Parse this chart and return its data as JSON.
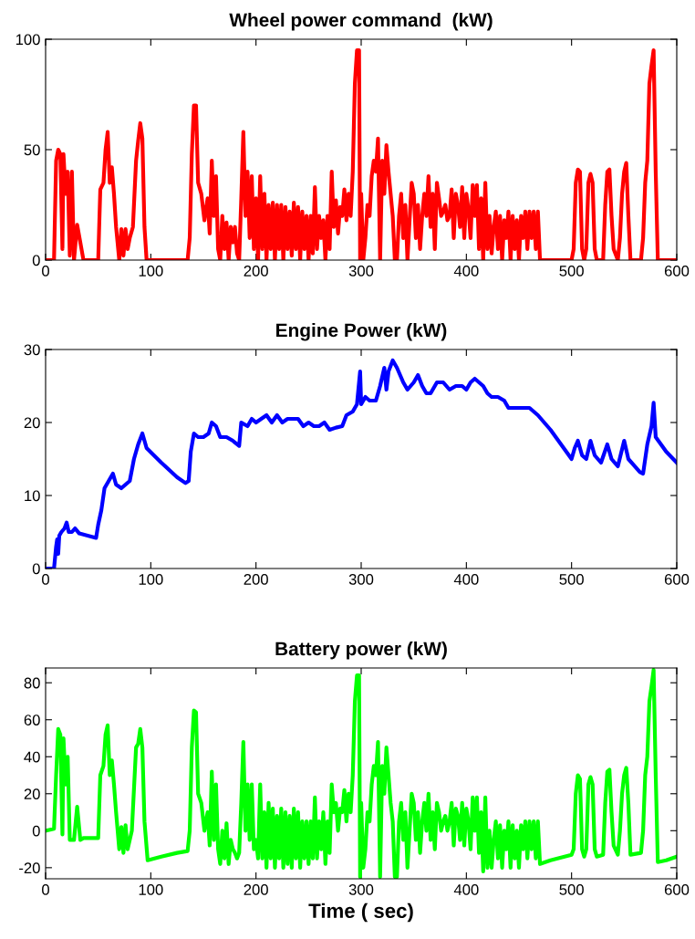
{
  "chart_data": [
    {
      "type": "line",
      "title": "Wheel power command  (kW)",
      "xlim": [
        0,
        600
      ],
      "xticks": [
        0,
        100,
        200,
        300,
        400,
        500,
        600
      ],
      "ylim": [
        0,
        100
      ],
      "yticks": [
        0,
        50,
        100
      ],
      "grid": false,
      "series": [
        {
          "color": "#ff0000",
          "x": [
            0,
            8,
            10,
            12,
            14,
            16,
            17,
            19,
            21,
            23,
            25,
            27,
            30,
            33,
            36,
            50,
            52,
            55,
            57,
            59,
            61,
            63,
            65,
            67,
            70,
            72,
            74,
            76,
            78,
            80,
            83,
            86,
            88,
            90,
            92,
            94,
            96,
            100,
            135,
            137,
            139,
            141,
            143,
            145,
            148,
            151,
            154,
            156,
            158,
            160,
            162,
            164,
            166,
            168,
            170,
            172,
            174,
            176,
            178,
            180,
            182,
            184,
            186,
            188,
            190,
            192,
            194,
            196,
            198,
            200,
            202,
            204,
            206,
            208,
            210,
            212,
            214,
            216,
            218,
            220,
            222,
            224,
            226,
            228,
            230,
            232,
            234,
            236,
            238,
            240,
            242,
            244,
            246,
            248,
            250,
            252,
            254,
            256,
            258,
            260,
            262,
            264,
            266,
            268,
            270,
            272,
            274,
            276,
            278,
            280,
            282,
            284,
            286,
            288,
            290,
            292,
            294,
            296,
            298,
            299,
            300,
            302,
            304,
            306,
            308,
            310,
            312,
            314,
            316,
            318,
            320,
            322,
            324,
            326,
            328,
            330,
            332,
            334,
            336,
            338,
            340,
            342,
            344,
            346,
            348,
            350,
            352,
            354,
            356,
            358,
            360,
            362,
            364,
            366,
            368,
            370,
            372,
            374,
            376,
            378,
            380,
            382,
            384,
            386,
            388,
            390,
            392,
            394,
            396,
            398,
            400,
            402,
            404,
            406,
            408,
            410,
            412,
            414,
            416,
            418,
            420,
            422,
            424,
            426,
            428,
            430,
            432,
            434,
            436,
            438,
            440,
            442,
            444,
            446,
            448,
            450,
            452,
            454,
            456,
            458,
            460,
            462,
            464,
            466,
            468,
            470,
            500,
            502,
            504,
            506,
            508,
            510,
            512,
            514,
            516,
            518,
            520,
            522,
            524,
            530,
            532,
            534,
            536,
            538,
            540,
            544,
            546,
            548,
            550,
            552,
            554,
            556,
            566,
            568,
            570,
            572,
            574,
            576,
            578,
            580,
            582,
            600
          ],
          "values": [
            0,
            0,
            45,
            50,
            48,
            5,
            48,
            30,
            40,
            2,
            40,
            0,
            16,
            8,
            0,
            0,
            32,
            35,
            50,
            58,
            35,
            42,
            30,
            15,
            0,
            14,
            2,
            14,
            5,
            10,
            15,
            45,
            54,
            62,
            55,
            15,
            0,
            0,
            0,
            10,
            48,
            70,
            70,
            35,
            30,
            18,
            28,
            12,
            45,
            20,
            38,
            5,
            0,
            20,
            5,
            17,
            0,
            15,
            8,
            15,
            3,
            0,
            28,
            58,
            20,
            40,
            10,
            38,
            5,
            28,
            0,
            38,
            5,
            30,
            0,
            25,
            5,
            26,
            0,
            25,
            5,
            25,
            0,
            24,
            5,
            22,
            2,
            26,
            5,
            24,
            0,
            22,
            5,
            20,
            0,
            20,
            3,
            33,
            5,
            20,
            10,
            18,
            0,
            20,
            5,
            40,
            15,
            27,
            12,
            24,
            20,
            32,
            18,
            30,
            20,
            40,
            80,
            95,
            95,
            0,
            30,
            0,
            10,
            25,
            20,
            38,
            45,
            40,
            55,
            0,
            45,
            30,
            52,
            40,
            30,
            20,
            0,
            0,
            20,
            30,
            10,
            25,
            0,
            18,
            35,
            30,
            10,
            25,
            5,
            20,
            30,
            20,
            38,
            15,
            30,
            5,
            35,
            28,
            20,
            22,
            25,
            18,
            20,
            32,
            10,
            30,
            25,
            15,
            33,
            10,
            30,
            23,
            10,
            34,
            20,
            34,
            5,
            28,
            0,
            35,
            5,
            20,
            3,
            15,
            22,
            5,
            20,
            0,
            18,
            10,
            22,
            0,
            20,
            5,
            18,
            0,
            20,
            10,
            22,
            5,
            22,
            10,
            22,
            5,
            22,
            0,
            0,
            5,
            35,
            41,
            40,
            5,
            0,
            5,
            35,
            39,
            35,
            5,
            0,
            0,
            25,
            40,
            41,
            20,
            5,
            0,
            10,
            30,
            40,
            44,
            20,
            0,
            0,
            10,
            35,
            45,
            80,
            88,
            95,
            40,
            0,
            0
          ]
        }
      ]
    },
    {
      "type": "line",
      "title": "Engine Power (kW)",
      "xlim": [
        0,
        600
      ],
      "xticks": [
        0,
        100,
        200,
        300,
        400,
        500,
        600
      ],
      "ylim": [
        0,
        30
      ],
      "yticks": [
        0,
        10,
        20,
        30
      ],
      "grid": false,
      "series": [
        {
          "color": "#0000ff",
          "x": [
            0,
            8,
            10,
            11,
            12,
            13,
            15,
            18,
            20,
            22,
            25,
            28,
            32,
            40,
            48,
            50,
            53,
            56,
            60,
            64,
            67,
            72,
            76,
            80,
            84,
            88,
            92,
            96,
            110,
            125,
            133,
            136,
            138,
            141,
            145,
            150,
            155,
            158,
            162,
            166,
            172,
            178,
            184,
            186,
            192,
            196,
            200,
            205,
            210,
            215,
            220,
            225,
            230,
            240,
            245,
            250,
            255,
            260,
            265,
            270,
            276,
            282,
            286,
            292,
            296,
            299,
            300,
            304,
            308,
            314,
            318,
            322,
            324,
            326,
            330,
            334,
            340,
            344,
            350,
            354,
            358,
            362,
            366,
            372,
            378,
            384,
            390,
            396,
            400,
            404,
            408,
            412,
            416,
            420,
            424,
            430,
            436,
            440,
            450,
            460,
            464,
            468,
            480,
            500,
            503,
            506,
            510,
            514,
            518,
            522,
            528,
            534,
            538,
            544,
            550,
            554,
            565,
            568,
            572,
            576,
            578,
            580,
            590,
            600
          ],
          "values": [
            0,
            0,
            3,
            4,
            2,
            4.5,
            5,
            5.5,
            6.3,
            5,
            5,
            5.5,
            4.8,
            4.5,
            4.2,
            6,
            8,
            11,
            12,
            13,
            11.5,
            11,
            11.5,
            12,
            15,
            17,
            18.5,
            16.5,
            14.5,
            12.5,
            11.7,
            12,
            16,
            18.5,
            18,
            18,
            18.5,
            20,
            19.5,
            18,
            18,
            17.5,
            16.8,
            20,
            19.5,
            20.5,
            20,
            20.5,
            21,
            20,
            21,
            20,
            20.5,
            20.5,
            19.5,
            20,
            19.5,
            19.5,
            20,
            19,
            19.3,
            19.5,
            21,
            21.5,
            22.5,
            27,
            22.5,
            23.5,
            23,
            23,
            25,
            27.5,
            24.5,
            27,
            28.5,
            27.5,
            25.5,
            24.5,
            25.5,
            26.5,
            25,
            24,
            24,
            25.5,
            25.5,
            24.5,
            25,
            25,
            24.5,
            25.5,
            26,
            25.5,
            25,
            24,
            23.5,
            23.5,
            23,
            22,
            22,
            22,
            21.5,
            21,
            19,
            15,
            16.5,
            17.5,
            15.5,
            15,
            17.5,
            15.5,
            14.5,
            17,
            15,
            14,
            17.5,
            15,
            13.2,
            13,
            17,
            19.5,
            22.7,
            18,
            16,
            14.5
          ]
        }
      ]
    },
    {
      "type": "line",
      "title": "Battery power (kW)",
      "xlabel": "Time ( sec)",
      "xlim": [
        0,
        600
      ],
      "xticks": [
        0,
        100,
        200,
        300,
        400,
        500,
        600
      ],
      "ylim": [
        -26,
        88
      ],
      "yticks": [
        -20,
        0,
        20,
        40,
        60,
        80
      ],
      "grid": false,
      "series": [
        {
          "color": "#00ff00",
          "x": [
            0,
            8,
            10,
            12,
            14,
            16,
            17,
            19,
            21,
            23,
            27,
            30,
            33,
            36,
            50,
            52,
            55,
            57,
            59,
            61,
            63,
            65,
            67,
            70,
            72,
            74,
            76,
            78,
            82,
            86,
            88,
            90,
            92,
            94,
            97,
            110,
            125,
            135,
            137,
            139,
            141,
            143,
            145,
            148,
            151,
            154,
            156,
            158,
            160,
            162,
            164,
            166,
            168,
            170,
            172,
            174,
            176,
            178,
            180,
            182,
            184,
            186,
            188,
            190,
            192,
            194,
            196,
            198,
            200,
            202,
            204,
            206,
            208,
            210,
            212,
            214,
            216,
            218,
            220,
            222,
            224,
            226,
            228,
            230,
            232,
            234,
            236,
            238,
            240,
            242,
            244,
            246,
            248,
            250,
            252,
            254,
            256,
            258,
            260,
            262,
            264,
            266,
            268,
            270,
            272,
            274,
            276,
            278,
            280,
            282,
            284,
            286,
            288,
            290,
            292,
            294,
            296,
            298,
            299,
            300,
            302,
            304,
            306,
            308,
            310,
            312,
            314,
            316,
            318,
            320,
            322,
            324,
            326,
            328,
            330,
            332,
            334,
            336,
            338,
            340,
            342,
            344,
            346,
            348,
            350,
            352,
            354,
            356,
            358,
            360,
            362,
            364,
            366,
            368,
            370,
            372,
            374,
            376,
            378,
            380,
            382,
            384,
            386,
            388,
            390,
            392,
            394,
            396,
            398,
            400,
            402,
            404,
            406,
            408,
            410,
            412,
            414,
            416,
            418,
            420,
            422,
            424,
            426,
            428,
            430,
            432,
            434,
            436,
            438,
            440,
            442,
            444,
            446,
            448,
            450,
            452,
            454,
            456,
            458,
            460,
            462,
            464,
            466,
            468,
            470,
            480,
            500,
            502,
            504,
            506,
            508,
            510,
            512,
            514,
            516,
            518,
            520,
            522,
            524,
            530,
            532,
            534,
            536,
            538,
            540,
            544,
            546,
            548,
            550,
            552,
            554,
            556,
            566,
            568,
            570,
            572,
            574,
            576,
            578,
            580,
            582,
            590,
            600
          ],
          "values": [
            0,
            1,
            30,
            55,
            52,
            -2,
            50,
            25,
            40,
            -5,
            -5,
            13,
            -5,
            -4,
            -4,
            30,
            35,
            52,
            57,
            30,
            38,
            25,
            10,
            -10,
            2,
            -12,
            3,
            -10,
            0,
            45,
            47,
            55,
            45,
            5,
            -16,
            -14,
            -12,
            -11,
            0,
            45,
            65,
            64,
            20,
            15,
            0,
            10,
            -8,
            32,
            -5,
            25,
            -10,
            -18,
            0,
            -15,
            4,
            -18,
            -5,
            -10,
            -12,
            -15,
            -12,
            15,
            48,
            0,
            25,
            -5,
            25,
            -10,
            -5,
            -15,
            25,
            -15,
            10,
            -20,
            15,
            -15,
            12,
            -20,
            8,
            -15,
            12,
            -20,
            10,
            -18,
            8,
            -20,
            12,
            -15,
            10,
            -20,
            5,
            -15,
            5,
            -18,
            5,
            -15,
            18,
            -15,
            5,
            -10,
            10,
            -18,
            5,
            -12,
            25,
            10,
            15,
            0,
            12,
            10,
            22,
            5,
            20,
            10,
            30,
            70,
            84,
            84,
            -25,
            15,
            -20,
            -10,
            10,
            5,
            25,
            35,
            30,
            48,
            -25,
            35,
            20,
            45,
            30,
            15,
            5,
            -25,
            -25,
            5,
            15,
            -5,
            10,
            -20,
            0,
            20,
            15,
            -5,
            10,
            -12,
            5,
            15,
            0,
            20,
            -5,
            10,
            -10,
            15,
            10,
            0,
            5,
            8,
            0,
            5,
            15,
            -8,
            12,
            8,
            -5,
            15,
            -8,
            12,
            5,
            -10,
            18,
            0,
            18,
            -12,
            10,
            -22,
            18,
            -20,
            0,
            -20,
            -5,
            5,
            -15,
            3,
            -20,
            0,
            -10,
            5,
            -20,
            3,
            -15,
            0,
            -20,
            3,
            -10,
            5,
            -15,
            5,
            -10,
            5,
            -15,
            5,
            -18,
            -16,
            -13,
            -10,
            20,
            30,
            28,
            -10,
            -14,
            -10,
            25,
            29,
            25,
            -10,
            -14,
            -13,
            15,
            32,
            33,
            10,
            -8,
            -13,
            0,
            20,
            30,
            34,
            15,
            -13,
            -12,
            0,
            30,
            40,
            70,
            78,
            87,
            30,
            -17,
            -16,
            -14
          ]
        }
      ]
    }
  ]
}
